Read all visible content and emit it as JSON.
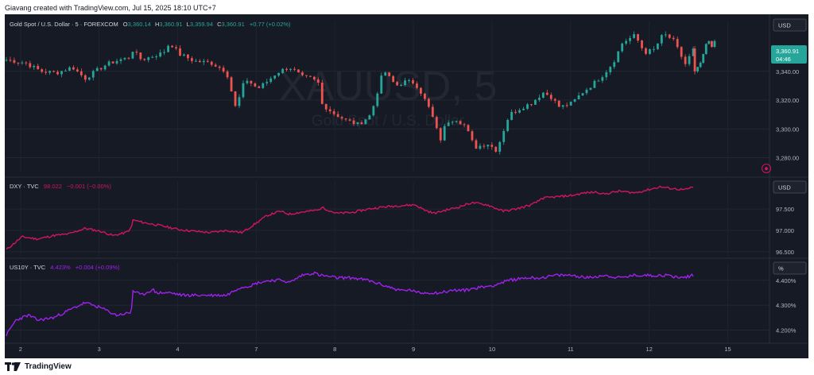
{
  "header": {
    "byline": "Giavang created with TradingView.com, Jul 15, 2025 18:10 UTC+7"
  },
  "footer": {
    "brand": "TradingView"
  },
  "theme": {
    "background": "#161a25",
    "up": "#26a69a",
    "down": "#ef5350",
    "dxy": "#d3145f",
    "us10y": "#a020f0",
    "text": "#d1d4dc",
    "axis_text": "#b2b5be"
  },
  "chart_data": [
    {
      "type": "candlestick",
      "symbol_line": "Gold Spot / U.S. Dollar · 5 · FOREXCOM",
      "ohlc_labels": {
        "o": "O",
        "h": "H",
        "l": "L",
        "c": "C"
      },
      "ohlc": {
        "open": "3,360.14",
        "high": "3,360.91",
        "low": "3,359.94",
        "close": "3,360.91",
        "change": "+0.77 (+0.02%)"
      },
      "watermark": {
        "ticker": "XAUUSD, 5",
        "name": "Gold Spot / U.S. Dollar"
      },
      "currency": "USD",
      "last_price": "3,360.91",
      "countdown": "04:46",
      "yticks": [
        {
          "v": 3340,
          "label": "3,340.00"
        },
        {
          "v": 3320,
          "label": "3,320.00"
        },
        {
          "v": 3300,
          "label": "3,300.00"
        },
        {
          "v": 3280,
          "label": "3,280.00"
        }
      ],
      "ylim": [
        3272,
        3373
      ],
      "x_points": [
        0,
        0.6,
        1.1,
        1.6,
        2.1,
        2.5,
        2.9,
        3.2,
        3.6,
        3.98,
        4.0,
        4.3,
        5.0,
        5.2,
        5.5,
        6.0,
        6.5,
        7.0,
        7.3,
        7.6,
        8.0,
        8.3,
        8.6,
        9.0,
        9.2,
        9.4,
        9.7,
        9.97,
        10.0,
        10.4,
        10.8,
        11.2,
        11.6,
        12.0,
        12.2,
        12.4,
        12.7,
        13.0,
        13.2,
        13.5,
        13.8,
        14.0,
        14.3,
        14.6,
        14.9,
        15.3,
        15.6,
        15.8,
        16.0,
        16.4,
        16.7,
        16.96,
        17.0,
        17.3,
        17.6,
        18.0,
        18.3,
        18.6,
        19.0,
        19.3,
        19.6,
        20.0,
        20.3,
        20.6,
        20.9,
        21.2,
        21.6,
        21.85
      ],
      "prices": [
        3348,
        3346,
        3340,
        3339,
        3343,
        3335,
        3341,
        3345,
        3348,
        3350,
        3355,
        3348,
        3353,
        3360,
        3352,
        3347,
        3346,
        3340,
        3314,
        3335,
        3328,
        3333,
        3339,
        3343,
        3340,
        3336,
        3335,
        3331,
        3318,
        3311,
        3306,
        3303,
        3310,
        3341,
        3335,
        3330,
        3333,
        3332,
        3325,
        3312,
        3292,
        3305,
        3307,
        3302,
        3287,
        3290,
        3285,
        3298,
        3310,
        3315,
        3318,
        3323,
        3326,
        3323,
        3315,
        3318,
        3325,
        3330,
        3338,
        3346,
        3360,
        3365,
        3353,
        3355,
        3366,
        3362,
        3345,
        3355
      ],
      "tail": [
        3340,
        3343,
        3346,
        3352,
        3359,
        3361,
        3357,
        3361
      ]
    },
    {
      "type": "line",
      "symbol_line": "DXY · TVC",
      "value": "98.022",
      "change": "−0.001 (−0.00%)",
      "currency": "USD",
      "yticks": [
        {
          "v": 97.5,
          "label": "97.500"
        },
        {
          "v": 97.0,
          "label": "97.000"
        },
        {
          "v": 96.5,
          "label": "96.500"
        }
      ],
      "ylim": [
        96.48,
        98.08
      ],
      "x_points": [
        0,
        0.5,
        1.0,
        1.5,
        2.0,
        2.5,
        3.0,
        3.4,
        3.8,
        3.98,
        4.0,
        4.4,
        5.0,
        5.5,
        6.0,
        6.5,
        7.0,
        7.5,
        7.7,
        8.0,
        8.3,
        8.7,
        9.0,
        9.3,
        9.6,
        9.97,
        10.0,
        10.5,
        11.0,
        11.5,
        12.0,
        12.5,
        13.0,
        13.3,
        13.6,
        14.0,
        14.4,
        14.8,
        15.3,
        15.8,
        16.2,
        16.7,
        16.96,
        17.0,
        17.4,
        18.0,
        18.4,
        18.8,
        19.0,
        19.5,
        20.0,
        20.4,
        20.8,
        21.2,
        21.6,
        21.85
      ],
      "values": [
        96.55,
        96.85,
        96.8,
        96.88,
        96.92,
        97.05,
        96.98,
        96.88,
        96.95,
        97.05,
        97.25,
        97.18,
        97.1,
        97.02,
        96.98,
        96.95,
        97.0,
        96.95,
        97.05,
        97.2,
        97.35,
        97.45,
        97.38,
        97.42,
        97.45,
        97.48,
        97.55,
        97.4,
        97.42,
        97.5,
        97.55,
        97.58,
        97.6,
        97.48,
        97.4,
        97.48,
        97.55,
        97.65,
        97.6,
        97.45,
        97.5,
        97.6,
        97.7,
        97.75,
        97.78,
        97.82,
        97.88,
        97.9,
        97.85,
        97.92,
        97.88,
        97.95,
        98.02,
        97.98,
        97.95,
        98.02
      ]
    },
    {
      "type": "line",
      "symbol_line": "US10Y · TVC",
      "value": "4.423%",
      "change": "+0.004 (+0.09%)",
      "currency": "%",
      "yticks": [
        {
          "v": 4.4,
          "label": "4.400%"
        },
        {
          "v": 4.3,
          "label": "4.300%"
        },
        {
          "v": 4.2,
          "label": "4.200%"
        }
      ],
      "ylim": [
        4.16,
        4.46
      ],
      "x_points": [
        0,
        0.3,
        0.7,
        1.0,
        1.5,
        2.0,
        2.5,
        3.0,
        3.5,
        3.98,
        4.0,
        4.3,
        4.6,
        4.7,
        4.75,
        4.8,
        5.2,
        5.6,
        6.0,
        6.5,
        6.96,
        7.0,
        7.4,
        7.8,
        8.0,
        8.4,
        8.8,
        9.0,
        9.4,
        9.8,
        9.97,
        10.0,
        10.5,
        11.0,
        11.5,
        12.0,
        12.5,
        12.96,
        13.0,
        13.4,
        13.8,
        14.2,
        14.6,
        14.96,
        15.0,
        15.5,
        16.0,
        16.5,
        16.96,
        17.0,
        17.5,
        18.0,
        18.5,
        19.0,
        19.5,
        20.0,
        20.5,
        20.96,
        21.0,
        21.5,
        21.85
      ],
      "values": [
        4.18,
        4.24,
        4.26,
        4.24,
        4.25,
        4.28,
        4.31,
        4.29,
        4.26,
        4.27,
        4.36,
        4.34,
        4.36,
        4.36,
        4.35,
        4.35,
        4.35,
        4.34,
        4.34,
        4.34,
        4.34,
        4.34,
        4.37,
        4.38,
        4.39,
        4.4,
        4.4,
        4.39,
        4.42,
        4.43,
        4.42,
        4.42,
        4.41,
        4.41,
        4.4,
        4.38,
        4.36,
        4.36,
        4.35,
        4.35,
        4.35,
        4.36,
        4.36,
        4.37,
        4.37,
        4.38,
        4.4,
        4.41,
        4.41,
        4.41,
        4.42,
        4.42,
        4.41,
        4.42,
        4.41,
        4.42,
        4.42,
        4.42,
        4.42,
        4.41,
        4.42
      ]
    }
  ],
  "x_axis": {
    "ticks": [
      {
        "x": 0.45,
        "label": "2"
      },
      {
        "x": 2.95,
        "label": "3"
      },
      {
        "x": 5.45,
        "label": "4"
      },
      {
        "x": 7.95,
        "label": "7"
      },
      {
        "x": 10.45,
        "label": "8"
      },
      {
        "x": 12.95,
        "label": "9"
      },
      {
        "x": 15.45,
        "label": "10"
      },
      {
        "x": 17.95,
        "label": "11"
      },
      {
        "x": 20.45,
        "label": "12"
      },
      {
        "x": 22.95,
        "label": "15"
      }
    ],
    "range": [
      0,
      24.2
    ]
  }
}
